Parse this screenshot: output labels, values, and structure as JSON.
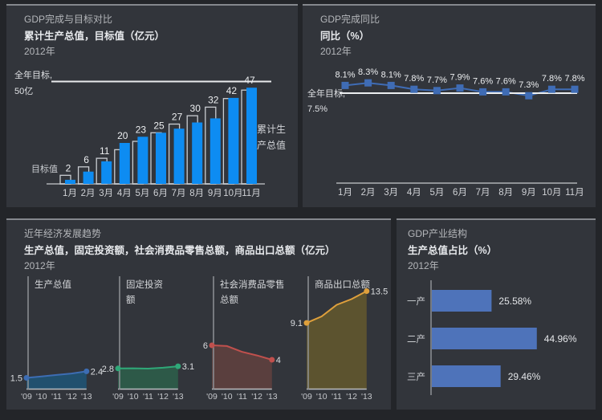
{
  "chart_data": [
    {
      "id": "gdp-vs-target",
      "type": "bar",
      "title": "GDP完成与目标对比",
      "subtitle": "累计生产总值，目标值（亿元）",
      "period": "2012年",
      "categories": [
        "1月",
        "2月",
        "3月",
        "4月",
        "5月",
        "6月",
        "7月",
        "8月",
        "9月",
        "10月",
        "11月"
      ],
      "series": [
        {
          "name": "累计生产总值",
          "name_lines": [
            "累计生",
            "产总值"
          ],
          "values": [
            2,
            6,
            11,
            20,
            23,
            25,
            27,
            30,
            32,
            42,
            47
          ],
          "color": "#0d8cf2",
          "style": "filled"
        },
        {
          "name": "目标值",
          "values": [
            4.2,
            8.3,
            12.5,
            16.7,
            20.8,
            25,
            29.2,
            33.3,
            37.5,
            41.7,
            45.8
          ],
          "color": "#c9cdd2",
          "style": "outline"
        }
      ],
      "reference_line": {
        "value": 50,
        "label": "全年目标,",
        "label2": "50亿"
      },
      "ylim": [
        0,
        55
      ]
    },
    {
      "id": "gdp-yoy",
      "type": "line",
      "title": "GDP完成同比",
      "subtitle": "同比（%）",
      "period": "2012年",
      "categories": [
        "1月",
        "2月",
        "3月",
        "4月",
        "5月",
        "6月",
        "7月",
        "8月",
        "9月",
        "10月",
        "11月"
      ],
      "values": [
        8.1,
        8.3,
        8.1,
        7.8,
        7.7,
        7.9,
        7.6,
        7.6,
        7.3,
        7.8,
        7.8
      ],
      "labels": [
        "8.1%",
        "8.3%",
        "8.1%",
        "7.8%",
        "7.7%",
        "7.9%",
        "7.6%",
        "7.6%",
        "7.3%",
        "7.8%",
        "7.8%"
      ],
      "reference_line": {
        "value": 7.5,
        "label": "全年目标,",
        "label2": "7.5%"
      },
      "color": "#3f6cb5"
    },
    {
      "id": "economic-trends",
      "type": "area",
      "title": "近年经济发展趋势",
      "subtitle": "生产总值，固定投资额，社会消费品零售总额，商品出口总额（亿元）",
      "period": "2012年",
      "x": [
        "'09",
        "'10",
        "'11",
        "'12",
        "'13"
      ],
      "charts": [
        {
          "name": "生产总值",
          "name_lines": [
            "生产总值"
          ],
          "values": [
            1.5,
            1.7,
            1.9,
            2.1,
            2.4
          ],
          "first_label": "1.5",
          "last_label": "2.4",
          "line_color": "#3d6db3",
          "fill_color": "#21506e"
        },
        {
          "name": "固定投资额",
          "name_lines": [
            "固定投资",
            "额"
          ],
          "values": [
            2.8,
            2.82,
            2.78,
            2.9,
            3.1
          ],
          "first_label": "2.8",
          "last_label": "3.1",
          "line_color": "#2fa878",
          "fill_color": "#2d5948"
        },
        {
          "name": "社会消费品零售总额",
          "name_lines": [
            "社会消费品零售",
            "总额"
          ],
          "values": [
            6,
            5.9,
            5.1,
            4.6,
            4
          ],
          "first_label": "6",
          "last_label": "4",
          "line_color": "#c0504d",
          "fill_color": "#5a3f3e"
        },
        {
          "name": "商品出口总额",
          "name_lines": [
            "商品出口总额"
          ],
          "values": [
            9.1,
            10,
            11.6,
            12.4,
            13.5
          ],
          "first_label": "9.1",
          "last_label": "13.5",
          "line_color": "#dfa03c",
          "fill_color": "#5c532f"
        }
      ]
    },
    {
      "id": "gdp-structure",
      "type": "bar-horizontal",
      "title": "GDP产业结构",
      "subtitle": "生产总值占比（%）",
      "period": "2012年",
      "categories": [
        "一产",
        "二产",
        "三产"
      ],
      "values": [
        25.58,
        44.96,
        29.46
      ],
      "labels": [
        "25.58%",
        "44.96%",
        "29.46%"
      ],
      "color": "#4e73ba"
    }
  ]
}
